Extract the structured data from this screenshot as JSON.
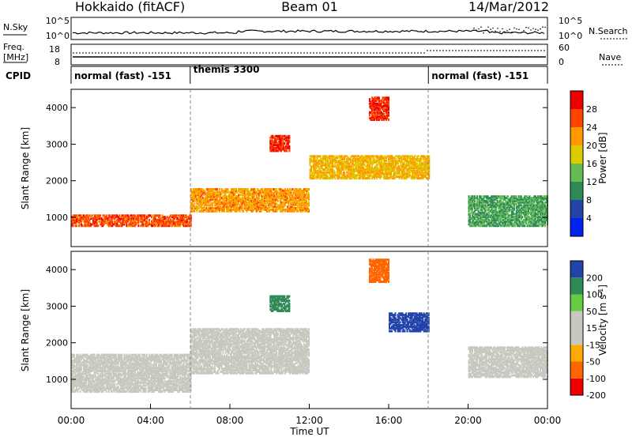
{
  "header": {
    "station": "Hokkaido (fitACF)",
    "beam": "Beam 01",
    "date": "14/Mar/2012"
  },
  "noise_panel": {
    "left_label": "N.Sky",
    "right_label": "N.Search",
    "ticks": [
      "10^5",
      "10^0"
    ]
  },
  "freq_panel": {
    "left_label_line1": "Freq.",
    "left_label_line2": "[MHz]",
    "left_ticks": [
      "18",
      "8"
    ],
    "right_label": "Nave",
    "right_ticks": [
      "60",
      "0"
    ]
  },
  "cpid_panel": {
    "label": "CPID",
    "segments": [
      {
        "name": "normal (fast) -151",
        "start_h": 0,
        "end_h": 6
      },
      {
        "name": "themis 3300",
        "start_h": 6,
        "end_h": 18
      },
      {
        "name": "normal (fast) -151",
        "start_h": 18,
        "end_h": 24
      }
    ]
  },
  "colors": {
    "power": [
      "#0022ee",
      "#2244aa",
      "#2e8b57",
      "#66bb55",
      "#ddcc00",
      "#ff9900",
      "#ff4400",
      "#ee0000"
    ],
    "velocity": [
      "#ee0000",
      "#ff6600",
      "#ffaa00",
      "#c8c8c0",
      "#c8c8c0",
      "#66cc44",
      "#2e8b57",
      "#2244aa"
    ]
  },
  "chart_data": [
    {
      "type": "heatmap",
      "panel": "power",
      "ylabel": "Slant Range [km]",
      "yticks": [
        1000,
        2000,
        3000,
        4000
      ],
      "ylim": [
        200,
        4500
      ],
      "colorbar_label": "Power [dB]",
      "colorbar_ticks": [
        4,
        8,
        12,
        16,
        20,
        24,
        28
      ],
      "colorbar_range": [
        0,
        32
      ],
      "echo_regions": [
        {
          "t_start": 0,
          "t_end": 6,
          "range_km": 950,
          "width_km": 150,
          "value": 26
        },
        {
          "t_start": 6,
          "t_end": 12,
          "range_km": 1500,
          "width_km": 300,
          "value": 22
        },
        {
          "t_start": 10,
          "t_end": 11,
          "range_km": 3050,
          "width_km": 200,
          "value": 28
        },
        {
          "t_start": 15,
          "t_end": 16,
          "range_km": 4000,
          "width_km": 300,
          "value": 28
        },
        {
          "t_start": 12,
          "t_end": 18,
          "range_km": 2400,
          "width_km": 300,
          "value": 20
        },
        {
          "t_start": 20,
          "t_end": 24,
          "range_km": 1200,
          "width_km": 400,
          "value": 12
        }
      ]
    },
    {
      "type": "heatmap",
      "panel": "velocity",
      "ylabel": "Slant Range [km]",
      "yticks": [
        1000,
        2000,
        3000,
        4000
      ],
      "ylim": [
        200,
        4500
      ],
      "xlabel": "Time UT",
      "xticks": [
        "00:00",
        "04:00",
        "08:00",
        "12:00",
        "16:00",
        "20:00",
        "00:00"
      ],
      "xlim_hours": [
        0,
        24
      ],
      "colorbar_label": "Velocity [m s^-1]",
      "colorbar_ticks": [
        "200",
        "100",
        "50",
        "15",
        "-15",
        "-50",
        "-100",
        "-200"
      ],
      "echo_regions": [
        {
          "t_start": 0,
          "t_end": 6,
          "range_km": 1200,
          "width_km": 500,
          "value": 0
        },
        {
          "t_start": 6,
          "t_end": 12,
          "range_km": 1800,
          "width_km": 600,
          "value": 0
        },
        {
          "t_start": 10,
          "t_end": 11,
          "range_km": 3100,
          "width_km": 200,
          "value": 60
        },
        {
          "t_start": 15,
          "t_end": 16,
          "range_km": 4000,
          "width_km": 300,
          "value": -150
        },
        {
          "t_start": 16,
          "t_end": 18,
          "range_km": 2600,
          "width_km": 250,
          "value": 120
        },
        {
          "t_start": 20,
          "t_end": 24,
          "range_km": 1500,
          "width_km": 400,
          "value": 0
        }
      ]
    }
  ]
}
